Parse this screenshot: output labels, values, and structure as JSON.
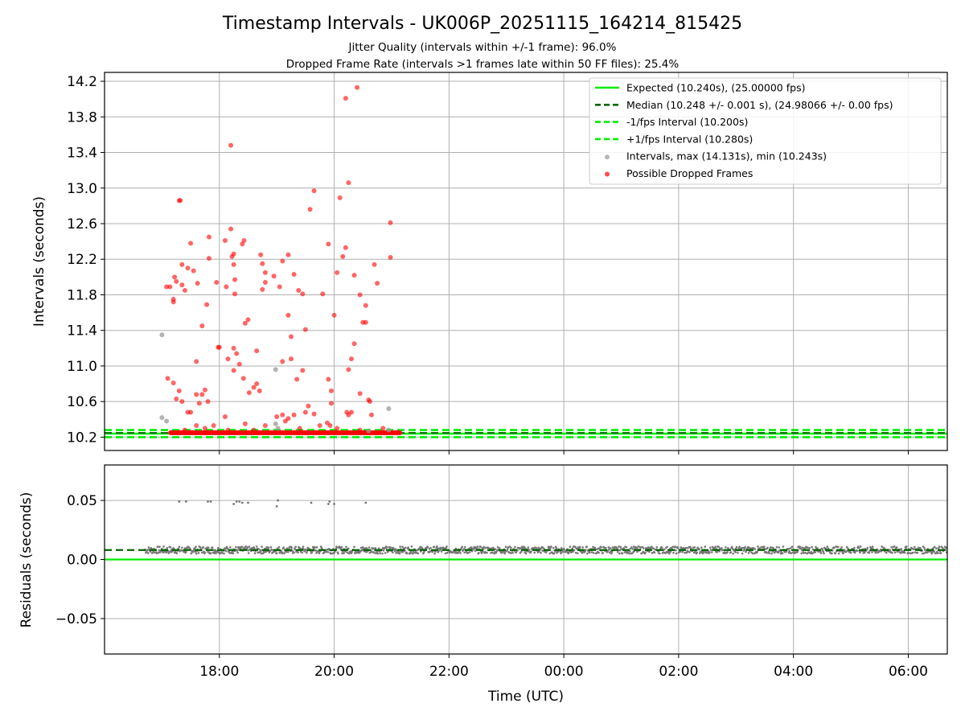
{
  "chart_data": {
    "type": "scatter",
    "title": "Timestamp Intervals - UK006P_20251115_164214_815425",
    "subtitle_lines": [
      "Jitter Quality (intervals within +/-1 frame): 96.0%",
      "Dropped Frame Rate (intervals >1 frames late within 50 FF files): 25.4%"
    ],
    "xlabel": "Time (UTC)",
    "x_unit": "hours since 00:00 on the first day",
    "xlim": [
      16.0,
      30.68
    ],
    "x_ticks": [
      {
        "value": 18,
        "label": "18:00"
      },
      {
        "value": 20,
        "label": "20:00"
      },
      {
        "value": 22,
        "label": "22:00"
      },
      {
        "value": 24,
        "label": "00:00"
      },
      {
        "value": 26,
        "label": "02:00"
      },
      {
        "value": 28,
        "label": "04:00"
      },
      {
        "value": 30,
        "label": "06:00"
      }
    ],
    "top_panel": {
      "ylabel": "Intervals (seconds)",
      "ylim": [
        10.05,
        14.3
      ],
      "y_ticks": [
        "10.2",
        "10.6",
        "11.0",
        "11.4",
        "11.8",
        "12.2",
        "12.6",
        "13.0",
        "13.4",
        "13.8",
        "14.2"
      ],
      "y_tick_values": [
        10.2,
        10.6,
        11.0,
        11.4,
        11.8,
        12.2,
        12.6,
        13.0,
        13.4,
        13.8,
        14.2
      ],
      "lines": [
        {
          "name": "Expected (10.240s), (25.00000 fps)",
          "y": 10.24,
          "color": "#00ee00",
          "style": "solid"
        },
        {
          "name": "Median (10.248 +/- 0.001 s), (24.98066 +/- 0.00 fps)",
          "y": 10.248,
          "color": "#006400",
          "style": "dashed"
        },
        {
          "name": "-1/fps Interval (10.200s)",
          "y": 10.2,
          "color": "#00ee00",
          "style": "dashed"
        },
        {
          "name": "+1/fps Interval (10.280s)",
          "y": 10.28,
          "color": "#00ee00",
          "style": "dashed"
        }
      ],
      "intervals_series": {
        "name": "Intervals, max (14.131s), min (10.243s)",
        "color": "#999999",
        "baseline_x_range": [
          17.15,
          21.15
        ],
        "baseline_y": 10.248,
        "points": [
          [
            17.0,
            11.35
          ],
          [
            17.0,
            10.42
          ],
          [
            17.08,
            10.38
          ],
          [
            18.98,
            10.96
          ],
          [
            18.98,
            10.35
          ],
          [
            19.02,
            10.3
          ],
          [
            20.95,
            10.52
          ],
          [
            20.95,
            10.28
          ],
          [
            20.6,
            10.27
          ]
        ]
      },
      "dropped_series": {
        "name": "Possible Dropped Frames",
        "color": "#ff0000",
        "baseline_x_range": [
          17.15,
          21.15
        ],
        "baseline_y": 10.25,
        "points": [
          [
            17.3,
            12.86
          ],
          [
            17.32,
            12.86
          ],
          [
            17.08,
            11.89
          ],
          [
            17.14,
            11.89
          ],
          [
            17.2,
            11.75
          ],
          [
            17.2,
            11.72
          ],
          [
            17.25,
            11.95
          ],
          [
            17.22,
            12.0
          ],
          [
            17.35,
            12.14
          ],
          [
            17.35,
            11.91
          ],
          [
            17.4,
            11.85
          ],
          [
            17.45,
            12.1
          ],
          [
            17.5,
            12.38
          ],
          [
            17.55,
            12.07
          ],
          [
            17.62,
            11.93
          ],
          [
            17.1,
            10.86
          ],
          [
            17.2,
            10.81
          ],
          [
            17.25,
            10.63
          ],
          [
            17.3,
            10.72
          ],
          [
            17.35,
            10.6
          ],
          [
            17.45,
            10.48
          ],
          [
            17.5,
            10.48
          ],
          [
            17.6,
            10.68
          ],
          [
            17.65,
            10.58
          ],
          [
            17.7,
            10.68
          ],
          [
            17.75,
            10.73
          ],
          [
            17.8,
            10.6
          ],
          [
            17.6,
            11.05
          ],
          [
            17.7,
            11.45
          ],
          [
            17.78,
            11.69
          ],
          [
            17.82,
            12.21
          ],
          [
            17.82,
            12.45
          ],
          [
            17.95,
            11.94
          ],
          [
            18.1,
            12.41
          ],
          [
            18.12,
            11.89
          ],
          [
            18.2,
            12.54
          ],
          [
            18.22,
            12.23
          ],
          [
            18.25,
            12.14
          ],
          [
            18.25,
            12.26
          ],
          [
            18.27,
            11.97
          ],
          [
            18.27,
            11.81
          ],
          [
            18.2,
            13.48
          ],
          [
            18.4,
            12.37
          ],
          [
            18.43,
            12.41
          ],
          [
            18.5,
            11.52
          ],
          [
            18.45,
            11.48
          ],
          [
            18.3,
            11.14
          ],
          [
            18.25,
            11.2
          ],
          [
            18.0,
            11.21
          ],
          [
            17.98,
            11.21
          ],
          [
            18.15,
            11.08
          ],
          [
            18.35,
            11.02
          ],
          [
            18.25,
            10.95
          ],
          [
            18.42,
            10.86
          ],
          [
            18.52,
            10.7
          ],
          [
            18.6,
            10.76
          ],
          [
            18.65,
            10.8
          ],
          [
            18.7,
            10.72
          ],
          [
            18.65,
            11.17
          ],
          [
            18.72,
            12.25
          ],
          [
            18.75,
            12.15
          ],
          [
            18.8,
            11.94
          ],
          [
            18.75,
            11.86
          ],
          [
            18.8,
            12.05
          ],
          [
            18.95,
            12.01
          ],
          [
            19.05,
            11.89
          ],
          [
            19.1,
            12.18
          ],
          [
            19.2,
            12.25
          ],
          [
            19.3,
            12.03
          ],
          [
            19.38,
            11.85
          ],
          [
            19.45,
            11.81
          ],
          [
            19.2,
            11.57
          ],
          [
            19.5,
            11.41
          ],
          [
            19.25,
            11.33
          ],
          [
            19.1,
            11.05
          ],
          [
            19.25,
            11.08
          ],
          [
            19.35,
            10.85
          ],
          [
            19.45,
            10.95
          ],
          [
            19.0,
            10.43
          ],
          [
            19.1,
            10.45
          ],
          [
            19.2,
            10.41
          ],
          [
            19.3,
            10.45
          ],
          [
            19.5,
            10.48
          ],
          [
            19.55,
            10.55
          ],
          [
            19.65,
            10.46
          ],
          [
            19.58,
            12.76
          ],
          [
            19.65,
            12.97
          ],
          [
            19.8,
            11.81
          ],
          [
            19.9,
            12.37
          ],
          [
            19.9,
            10.85
          ],
          [
            19.95,
            10.72
          ],
          [
            19.95,
            10.58
          ],
          [
            20.0,
            11.57
          ],
          [
            20.05,
            12.05
          ],
          [
            20.1,
            12.89
          ],
          [
            20.15,
            12.23
          ],
          [
            20.2,
            14.01
          ],
          [
            20.25,
            13.06
          ],
          [
            20.25,
            10.96
          ],
          [
            20.3,
            11.08
          ],
          [
            20.3,
            10.48
          ],
          [
            20.35,
            11.25
          ],
          [
            20.35,
            12.02
          ],
          [
            20.4,
            14.13
          ],
          [
            20.45,
            11.8
          ],
          [
            20.45,
            10.69
          ],
          [
            20.5,
            11.49
          ],
          [
            20.55,
            11.49
          ],
          [
            20.55,
            11.68
          ],
          [
            20.6,
            10.62
          ],
          [
            20.62,
            10.6
          ],
          [
            20.65,
            10.45
          ],
          [
            20.7,
            12.14
          ],
          [
            20.75,
            11.93
          ],
          [
            20.98,
            12.22
          ],
          [
            20.98,
            12.61
          ],
          [
            20.2,
            12.33
          ],
          [
            20.22,
            10.48
          ],
          [
            17.6,
            10.33
          ],
          [
            17.9,
            10.33
          ],
          [
            18.1,
            10.43
          ],
          [
            18.45,
            10.35
          ],
          [
            18.8,
            10.33
          ],
          [
            19.15,
            10.38
          ],
          [
            19.75,
            10.33
          ],
          [
            19.88,
            10.36
          ],
          [
            19.93,
            10.33
          ],
          [
            20.25,
            10.45
          ],
          [
            20.85,
            10.3
          ],
          [
            20.45,
            10.28
          ],
          [
            17.4,
            10.28
          ],
          [
            17.75,
            10.3
          ],
          [
            18.15,
            10.28
          ],
          [
            18.6,
            10.28
          ],
          [
            19.4,
            10.3
          ],
          [
            20.05,
            10.3
          ]
        ]
      }
    },
    "bottom_panel": {
      "ylabel": "Residuals (seconds)",
      "ylim": [
        -0.08,
        0.08
      ],
      "y_ticks": [
        "0.05",
        "0.00",
        "−0.05"
      ],
      "y_tick_values": [
        0.05,
        0.0,
        -0.05
      ],
      "lines": [
        {
          "name": "zero",
          "y": 0.0,
          "color": "#00ee00",
          "style": "solid"
        },
        {
          "name": "median residual",
          "y": 0.008,
          "color": "#006400",
          "style": "dashed"
        }
      ],
      "residual_band": {
        "x_range": [
          16.7,
          30.68
        ],
        "y_center": 0.008,
        "y_spread": 0.003,
        "color": "#777777"
      },
      "outliers": [
        [
          17.3,
          0.049
        ],
        [
          17.42,
          0.049
        ],
        [
          17.8,
          0.049
        ],
        [
          17.85,
          0.049
        ],
        [
          18.25,
          0.047
        ],
        [
          18.3,
          0.049
        ],
        [
          18.35,
          0.049
        ],
        [
          18.4,
          0.048
        ],
        [
          18.5,
          0.048
        ],
        [
          19.0,
          0.045
        ],
        [
          19.02,
          0.05
        ],
        [
          19.6,
          0.048
        ],
        [
          19.9,
          0.047
        ],
        [
          19.92,
          0.049
        ],
        [
          20.0,
          0.047
        ],
        [
          20.55,
          0.048
        ]
      ]
    },
    "legend": {
      "placement": "upper right",
      "entries": [
        {
          "label": "Expected (10.240s), (25.00000 fps)",
          "marker": "line",
          "color": "#00ee00",
          "style": "solid"
        },
        {
          "label": "Median (10.248 +/- 0.001 s), (24.98066 +/- 0.00 fps)",
          "marker": "line",
          "color": "#006400",
          "style": "dashed"
        },
        {
          "label": "-1/fps Interval (10.200s)",
          "marker": "line",
          "color": "#00ee00",
          "style": "dashed"
        },
        {
          "label": "+1/fps Interval (10.280s)",
          "marker": "line",
          "color": "#00ee00",
          "style": "dashed"
        },
        {
          "label": "Intervals, max (14.131s), min (10.243s)",
          "marker": "dot",
          "color": "#999999"
        },
        {
          "label": "Possible Dropped Frames",
          "marker": "dot",
          "color": "#ff0000"
        }
      ]
    }
  }
}
